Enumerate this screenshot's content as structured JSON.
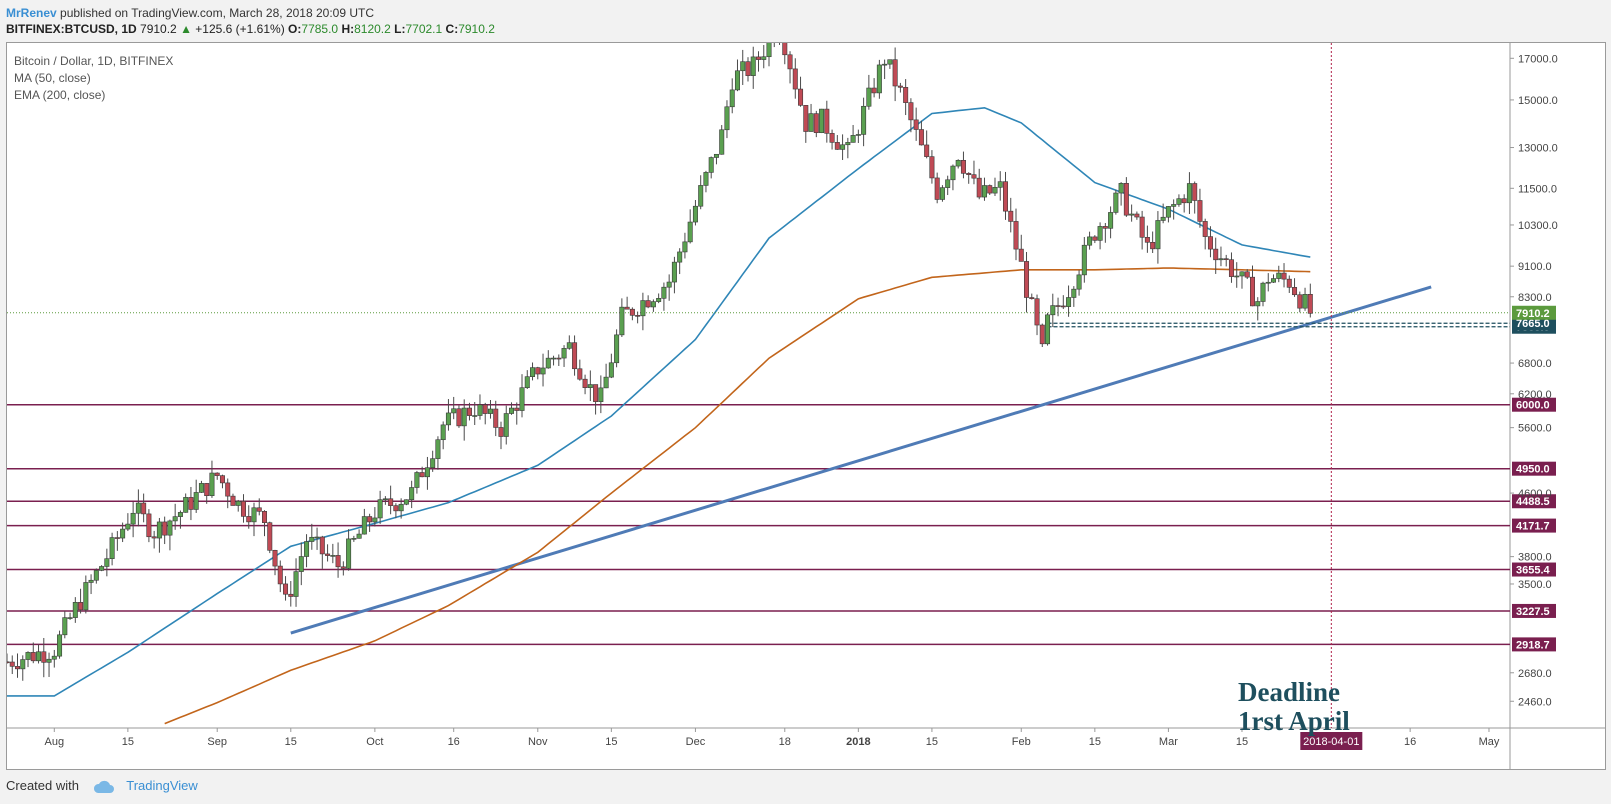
{
  "header": {
    "author": "MrRenev",
    "published": "published on TradingView.com, March 28, 2018 20:09 UTC"
  },
  "quote": {
    "symbol": "BITFINEX:BTCUSD, 1D",
    "last": "7910.2",
    "change": "+125.6 (+1.61%)",
    "o_label": "O:",
    "o": "7785.0",
    "h_label": "H:",
    "h": "8120.2",
    "l_label": "L:",
    "l": "7702.1",
    "c_label": "C:",
    "c": "7910.2"
  },
  "legend": {
    "title": "Bitcoin / Dollar, 1D, BITFINEX",
    "ma": "MA (50, close)",
    "ema": "EMA (200, close)"
  },
  "annotation": {
    "line1": "Deadline",
    "line2": "1rst April"
  },
  "footer": {
    "created_with": "Created with",
    "brand": "TradingView"
  },
  "colors": {
    "up": "#5aa050",
    "down": "#c04a55",
    "ma": "#2f86b7",
    "ema": "#c2651b",
    "trendline": "#4f7bb6",
    "levels": "#7a1f4f",
    "current_price": "#5b9a3d",
    "support_label": "#1e4f5e"
  },
  "chart_data": {
    "type": "candlestick",
    "symbol": "BITFINEX:BTCUSD",
    "timeframe": "1D",
    "y_scale": "log",
    "ylim": [
      2270,
      17800
    ],
    "xlim": [
      "2017-07-23",
      "2018-05-05"
    ],
    "y_ticks": [
      "2270.0",
      "2460.0",
      "2680.0",
      "2918.7",
      "3227.5",
      "3500.0",
      "3655.4",
      "3800.0",
      "4171.7",
      "4488.5",
      "4600.0",
      "4950.0",
      "5600.0",
      "6000.0",
      "6200.0",
      "6800.0",
      "7585.0",
      "7665.0",
      "7910.2",
      "8300.0",
      "9100.0",
      "10300.0",
      "11500.0",
      "13000.0",
      "15000.0",
      "17000.0"
    ],
    "x_ticks": [
      {
        "label": "Aug",
        "date": "2017-08-01"
      },
      {
        "label": "15",
        "date": "2017-08-15"
      },
      {
        "label": "Sep",
        "date": "2017-09-01"
      },
      {
        "label": "15",
        "date": "2017-09-15"
      },
      {
        "label": "Oct",
        "date": "2017-10-01"
      },
      {
        "label": "16",
        "date": "2017-10-16"
      },
      {
        "label": "Nov",
        "date": "2017-11-01"
      },
      {
        "label": "15",
        "date": "2017-11-15"
      },
      {
        "label": "Dec",
        "date": "2017-12-01"
      },
      {
        "label": "18",
        "date": "2017-12-18"
      },
      {
        "label": "2018",
        "date": "2018-01-01"
      },
      {
        "label": "15",
        "date": "2018-01-15"
      },
      {
        "label": "Feb",
        "date": "2018-02-01"
      },
      {
        "label": "15",
        "date": "2018-02-15"
      },
      {
        "label": "Mar",
        "date": "2018-03-01"
      },
      {
        "label": "15",
        "date": "2018-03-15"
      },
      {
        "label": "16",
        "date": "2018-04-16"
      },
      {
        "label": "May",
        "date": "2018-05-01"
      }
    ],
    "deadline": {
      "label": "2018-04-01",
      "date": "2018-04-01"
    },
    "horizontal_levels": [
      {
        "value": 6000.0,
        "label": "6000.0"
      },
      {
        "value": 4950.0,
        "label": "4950.0"
      },
      {
        "value": 4488.5,
        "label": "4488.5"
      },
      {
        "value": 4171.7,
        "label": "4171.7"
      },
      {
        "value": 3655.4,
        "label": "3655.4"
      },
      {
        "value": 3227.5,
        "label": "3227.5"
      },
      {
        "value": 2918.7,
        "label": "2918.7"
      }
    ],
    "support_dashed": [
      {
        "value": 7665.0,
        "label": "7665.0",
        "from": "2018-02-06"
      },
      {
        "value": 7585.0,
        "label": "7585.0",
        "from": "2018-02-06"
      }
    ],
    "current_price": {
      "value": 7910.2,
      "label": "7910.2"
    },
    "trendline": {
      "start": {
        "date": "2017-09-15",
        "value": 3020
      },
      "end": {
        "date": "2018-04-20",
        "value": 8550
      }
    },
    "price_anchors": [
      [
        "2017-07-23",
        2770
      ],
      [
        "2017-08-01",
        2880
      ],
      [
        "2017-08-05",
        3250
      ],
      [
        "2017-08-12",
        3900
      ],
      [
        "2017-08-16",
        4400
      ],
      [
        "2017-08-20",
        4100
      ],
      [
        "2017-08-25",
        4350
      ],
      [
        "2017-09-01",
        4850
      ],
      [
        "2017-09-05",
        4450
      ],
      [
        "2017-09-10",
        4250
      ],
      [
        "2017-09-14",
        3300
      ],
      [
        "2017-09-18",
        4000
      ],
      [
        "2017-09-24",
        3700
      ],
      [
        "2017-10-01",
        4350
      ],
      [
        "2017-10-08",
        4600
      ],
      [
        "2017-10-14",
        5650
      ],
      [
        "2017-10-20",
        5950
      ],
      [
        "2017-10-25",
        5600
      ],
      [
        "2017-11-01",
        6700
      ],
      [
        "2017-11-07",
        7150
      ],
      [
        "2017-11-11",
        6300
      ],
      [
        "2017-11-13",
        6100
      ],
      [
        "2017-11-17",
        7800
      ],
      [
        "2017-11-26",
        8700
      ],
      [
        "2017-12-01",
        10900
      ],
      [
        "2017-12-06",
        13500
      ],
      [
        "2017-12-08",
        16000
      ],
      [
        "2017-12-12",
        16600
      ],
      [
        "2017-12-17",
        18900
      ],
      [
        "2017-12-22",
        14000
      ],
      [
        "2017-12-25",
        14100
      ],
      [
        "2017-12-30",
        12800
      ],
      [
        "2018-01-06",
        17000
      ],
      [
        "2018-01-09",
        15300
      ],
      [
        "2018-01-16",
        11400
      ],
      [
        "2018-01-20",
        12800
      ],
      [
        "2018-01-24",
        11200
      ],
      [
        "2018-01-28",
        11500
      ],
      [
        "2018-02-01",
        9100
      ],
      [
        "2018-02-05",
        7000
      ],
      [
        "2018-02-06",
        7700
      ],
      [
        "2018-02-10",
        8500
      ],
      [
        "2018-02-15",
        10100
      ],
      [
        "2018-02-20",
        11300
      ],
      [
        "2018-02-25",
        9600
      ],
      [
        "2018-03-01",
        10700
      ],
      [
        "2018-03-05",
        11500
      ],
      [
        "2018-03-08",
        9900
      ],
      [
        "2018-03-12",
        9200
      ],
      [
        "2018-03-18",
        8200
      ],
      [
        "2018-03-20",
        8800
      ],
      [
        "2018-03-24",
        8700
      ],
      [
        "2018-03-28",
        7910
      ]
    ],
    "ma50_anchors": [
      [
        "2017-07-23",
        2500
      ],
      [
        "2017-08-01",
        2500
      ],
      [
        "2017-08-15",
        2850
      ],
      [
        "2017-09-01",
        3400
      ],
      [
        "2017-09-15",
        3920
      ],
      [
        "2017-10-01",
        4200
      ],
      [
        "2017-10-15",
        4470
      ],
      [
        "2017-11-01",
        5000
      ],
      [
        "2017-11-15",
        5800
      ],
      [
        "2017-12-01",
        7300
      ],
      [
        "2017-12-15",
        9900
      ],
      [
        "2018-01-01",
        12200
      ],
      [
        "2018-01-15",
        14400
      ],
      [
        "2018-01-25",
        14650
      ],
      [
        "2018-02-01",
        14000
      ],
      [
        "2018-02-15",
        11700
      ],
      [
        "2018-03-01",
        10800
      ],
      [
        "2018-03-15",
        9700
      ],
      [
        "2018-03-28",
        9350
      ]
    ],
    "ema200_anchors": [
      [
        "2017-08-22",
        2300
      ],
      [
        "2017-09-01",
        2450
      ],
      [
        "2017-09-15",
        2700
      ],
      [
        "2017-10-01",
        2950
      ],
      [
        "2017-10-15",
        3280
      ],
      [
        "2017-11-01",
        3850
      ],
      [
        "2017-11-15",
        4600
      ],
      [
        "2017-12-01",
        5600
      ],
      [
        "2017-12-15",
        6900
      ],
      [
        "2018-01-01",
        8250
      ],
      [
        "2018-01-15",
        8800
      ],
      [
        "2018-02-01",
        9000
      ],
      [
        "2018-02-15",
        9000
      ],
      [
        "2018-03-01",
        9050
      ],
      [
        "2018-03-15",
        9000
      ],
      [
        "2018-03-28",
        8950
      ]
    ]
  }
}
